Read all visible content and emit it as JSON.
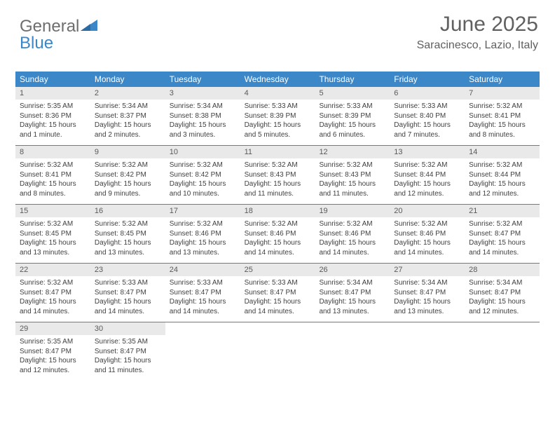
{
  "logo": {
    "text1": "General",
    "text2": "Blue"
  },
  "title": "June 2025",
  "location": "Saracinesco, Lazio, Italy",
  "colors": {
    "header_bg": "#3b87c8",
    "header_text": "#ffffff",
    "day_num_bg": "#e9e9e9",
    "text_gray": "#606060",
    "body_text": "#404040",
    "divider": "#3b87c8"
  },
  "day_names": [
    "Sunday",
    "Monday",
    "Tuesday",
    "Wednesday",
    "Thursday",
    "Friday",
    "Saturday"
  ],
  "days": [
    {
      "n": 1,
      "sr": "5:35 AM",
      "ss": "8:36 PM",
      "dl": "15 hours and 1 minute."
    },
    {
      "n": 2,
      "sr": "5:34 AM",
      "ss": "8:37 PM",
      "dl": "15 hours and 2 minutes."
    },
    {
      "n": 3,
      "sr": "5:34 AM",
      "ss": "8:38 PM",
      "dl": "15 hours and 3 minutes."
    },
    {
      "n": 4,
      "sr": "5:33 AM",
      "ss": "8:39 PM",
      "dl": "15 hours and 5 minutes."
    },
    {
      "n": 5,
      "sr": "5:33 AM",
      "ss": "8:39 PM",
      "dl": "15 hours and 6 minutes."
    },
    {
      "n": 6,
      "sr": "5:33 AM",
      "ss": "8:40 PM",
      "dl": "15 hours and 7 minutes."
    },
    {
      "n": 7,
      "sr": "5:32 AM",
      "ss": "8:41 PM",
      "dl": "15 hours and 8 minutes."
    },
    {
      "n": 8,
      "sr": "5:32 AM",
      "ss": "8:41 PM",
      "dl": "15 hours and 8 minutes."
    },
    {
      "n": 9,
      "sr": "5:32 AM",
      "ss": "8:42 PM",
      "dl": "15 hours and 9 minutes."
    },
    {
      "n": 10,
      "sr": "5:32 AM",
      "ss": "8:42 PM",
      "dl": "15 hours and 10 minutes."
    },
    {
      "n": 11,
      "sr": "5:32 AM",
      "ss": "8:43 PM",
      "dl": "15 hours and 11 minutes."
    },
    {
      "n": 12,
      "sr": "5:32 AM",
      "ss": "8:43 PM",
      "dl": "15 hours and 11 minutes."
    },
    {
      "n": 13,
      "sr": "5:32 AM",
      "ss": "8:44 PM",
      "dl": "15 hours and 12 minutes."
    },
    {
      "n": 14,
      "sr": "5:32 AM",
      "ss": "8:44 PM",
      "dl": "15 hours and 12 minutes."
    },
    {
      "n": 15,
      "sr": "5:32 AM",
      "ss": "8:45 PM",
      "dl": "15 hours and 13 minutes."
    },
    {
      "n": 16,
      "sr": "5:32 AM",
      "ss": "8:45 PM",
      "dl": "15 hours and 13 minutes."
    },
    {
      "n": 17,
      "sr": "5:32 AM",
      "ss": "8:46 PM",
      "dl": "15 hours and 13 minutes."
    },
    {
      "n": 18,
      "sr": "5:32 AM",
      "ss": "8:46 PM",
      "dl": "15 hours and 14 minutes."
    },
    {
      "n": 19,
      "sr": "5:32 AM",
      "ss": "8:46 PM",
      "dl": "15 hours and 14 minutes."
    },
    {
      "n": 20,
      "sr": "5:32 AM",
      "ss": "8:46 PM",
      "dl": "15 hours and 14 minutes."
    },
    {
      "n": 21,
      "sr": "5:32 AM",
      "ss": "8:47 PM",
      "dl": "15 hours and 14 minutes."
    },
    {
      "n": 22,
      "sr": "5:32 AM",
      "ss": "8:47 PM",
      "dl": "15 hours and 14 minutes."
    },
    {
      "n": 23,
      "sr": "5:33 AM",
      "ss": "8:47 PM",
      "dl": "15 hours and 14 minutes."
    },
    {
      "n": 24,
      "sr": "5:33 AM",
      "ss": "8:47 PM",
      "dl": "15 hours and 14 minutes."
    },
    {
      "n": 25,
      "sr": "5:33 AM",
      "ss": "8:47 PM",
      "dl": "15 hours and 14 minutes."
    },
    {
      "n": 26,
      "sr": "5:34 AM",
      "ss": "8:47 PM",
      "dl": "15 hours and 13 minutes."
    },
    {
      "n": 27,
      "sr": "5:34 AM",
      "ss": "8:47 PM",
      "dl": "15 hours and 13 minutes."
    },
    {
      "n": 28,
      "sr": "5:34 AM",
      "ss": "8:47 PM",
      "dl": "15 hours and 12 minutes."
    },
    {
      "n": 29,
      "sr": "5:35 AM",
      "ss": "8:47 PM",
      "dl": "15 hours and 12 minutes."
    },
    {
      "n": 30,
      "sr": "5:35 AM",
      "ss": "8:47 PM",
      "dl": "15 hours and 11 minutes."
    }
  ],
  "labels": {
    "sunrise": "Sunrise:",
    "sunset": "Sunset:",
    "daylight": "Daylight:"
  },
  "layout": {
    "first_weekday_index": 0,
    "weeks": 5,
    "cols": 7
  }
}
